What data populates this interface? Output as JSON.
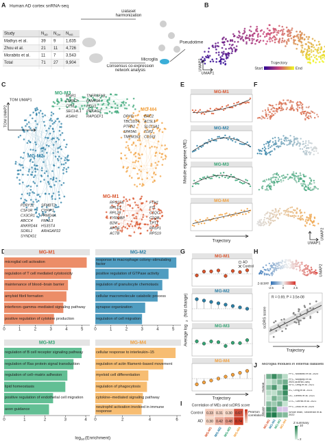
{
  "modules": [
    {
      "name": "MG-M1",
      "color": "#d9532b",
      "light": "#ec8d68"
    },
    {
      "name": "MG-M2",
      "color": "#2b7fa6",
      "light": "#4f9cc0"
    },
    {
      "name": "MG-M3",
      "color": "#35a474",
      "light": "#62bf94"
    },
    {
      "name": "MG-M4",
      "color": "#f2a03d",
      "light": "#f7bd72"
    }
  ],
  "panel_a": {
    "letter": "A",
    "title": "Human AD cortex snRNA-seq",
    "header": [
      {
        "text": "Study"
      },
      {
        "main": "N",
        "sub": "AD"
      },
      {
        "main": "N",
        "sub": "Ctrl"
      },
      {
        "main": "N",
        "sub": "MG"
      }
    ],
    "rows": [
      [
        "Mathys et al.",
        "39",
        "9",
        "1,635"
      ],
      [
        "Zhou et al.",
        "21",
        "11",
        "4,726"
      ],
      [
        "Morabito et al.",
        "11",
        "7",
        "3,543"
      ],
      [
        "Total",
        "71",
        "27",
        "9,904"
      ]
    ],
    "steps": [
      "Dataset harmonization",
      "Microglia",
      "Pseudotime",
      "Consensus co-expression network analysis"
    ]
  },
  "panel_b": {
    "letter": "B",
    "x_label": "UMAP1",
    "y_label": "UMAP2",
    "legend_title": "Trajectory",
    "legend_start": "Start",
    "legend_end": "End"
  },
  "panel_c": {
    "letter": "C",
    "x_label": "TOM UMAP1",
    "y_label": "TOM UMAP2",
    "genes": [
      [
        "FTH1",
        "FTL",
        "C1QC",
        "C1QB",
        "TPT1",
        "RPLP1",
        "RPS19",
        "RPS27A",
        "RPL13",
        "RPL28",
        "TYROBP",
        "B2M",
        "APOE",
        "ACTB"
      ],
      [
        "P2RY12",
        "CSF1R",
        "CX3CR1",
        "ABCC4",
        "ANKRD44",
        "SORL1",
        "SYNDIG1",
        "SFMBT2",
        "CYFIP1",
        "FRMD4A",
        "FMNL3",
        "HS3ST4",
        "ARHGAP22"
      ],
      [
        "MSR1",
        "LRRK2",
        "CPVL",
        "SEC14L1",
        "ASAH1",
        "TNFRSF1B",
        "FAM49A",
        "PELI1",
        "PRKAG2",
        "RAPGEF1"
      ],
      [
        "DPYD",
        "TBC1D14",
        "PTPN2",
        "SPATA6",
        "TMEM163",
        "ERC2",
        "ACSL1",
        "SLC11A1",
        "TLR2",
        "CD163"
      ]
    ]
  },
  "panel_d": {
    "letter": "D",
    "x_label": {
      "main": "log",
      "sub": "10",
      "rest": "(Enrichment)"
    },
    "charts": [
      {
        "type": "bar",
        "categories": [
          "microglial cell activation",
          "regulation of T cell mediated cytotoxicity",
          "maintenance of blood–brain barrier",
          "amyloid fibril formation",
          "interferon–gamma–mediated signaling pathway",
          "positive regulation of cytokine production"
        ],
        "values": [
          5.3,
          4.3,
          4.1,
          4.0,
          3.8,
          3.2
        ],
        "xlim": [
          0,
          5.5
        ],
        "xticks": [
          0,
          1,
          2,
          3,
          4,
          5
        ]
      },
      {
        "type": "bar",
        "categories": [
          "response to macrophage colony–stimulating factor",
          "positive regulation of GTPase activity",
          "regulation of granulocyte chemotaxis",
          "cellular macromolecule catabolic process",
          "synapse organization",
          "regulation of cell migration"
        ],
        "values": [
          5.2,
          4.7,
          4.3,
          4.0,
          3.2,
          3.0
        ],
        "xlim": [
          0,
          5.5
        ],
        "xticks": [
          0,
          1,
          2,
          3,
          4,
          5
        ]
      },
      {
        "type": "bar",
        "categories": [
          "regulation of B cell receptor signaling pathway",
          "regulation of Ras protein signal transduction",
          "regulation of cell–matrix adhesion",
          "lipid homeostasis",
          "positive regulation of endothelial cell migration",
          "axon guidance"
        ],
        "values": [
          3.8,
          3.4,
          3.1,
          3.0,
          2.4,
          2.2
        ],
        "xlim": [
          0,
          4.2
        ],
        "xticks": [
          0,
          1,
          2,
          3,
          4
        ]
      },
      {
        "type": "bar",
        "categories": [
          "cellular response to interleukin–15",
          "regulation of actin filament–based movement",
          "myeloid cell differentiation",
          "regulation of phagocytosis",
          "cytokine–mediated signaling pathway",
          "neutrophil activation involved in immune response"
        ],
        "values": [
          5.9,
          5.0,
          3.9,
          3.8,
          3.5,
          3.4
        ],
        "xlim": [
          0,
          6.3
        ],
        "xticks": [
          0,
          2,
          4,
          6
        ]
      }
    ]
  },
  "panel_e": {
    "letter": "E",
    "y_label": "Module eigengene (ME)",
    "x_label": "Trajectory"
  },
  "panel_f": {
    "letter": "F",
    "x_label": "UMAP1",
    "y_label": "UMAP2"
  },
  "panel_g": {
    "letter": "G",
    "legend": [
      "AD",
      "Control"
    ],
    "y_label": {
      "main": "Average log",
      "sub": "2",
      "rest": "(fold change)"
    },
    "x_label": "Trajectory"
  },
  "panel_h": {
    "letter": "H",
    "legend_title": "z-score",
    "legend_ticks": [
      -2.5,
      0,
      2.5
    ],
    "umap_label": "UMAP2",
    "stat": "R = 0.69, P = 3.5e-08",
    "y_label": "scDRS score",
    "x_label": "Trajectory"
  },
  "panel_i": {
    "letter": "I",
    "title": "Correlation of MEs and scDRS score",
    "rows": [
      "Control",
      "AD"
    ],
    "values": [
      [
        0.33,
        0.31,
        0.3,
        0.67
      ],
      [
        0.3,
        0.42,
        0.48,
        0.74
      ]
    ],
    "value_labels": [
      [
        "0.33",
        "0.31",
        "0.30",
        "0.67"
      ],
      [
        "0.30",
        "0.42",
        "0.48",
        "0.74"
      ]
    ],
    "legend_title": "Pearson correlation"
  },
  "panel_j": {
    "letter": "J",
    "title": "Microglia modules in external datasets",
    "rows": [
      "PFC, Morabito et al. 2020",
      "PFC, Morabito et al. 2021,snATAC-seq",
      "SFG, Leng et al. 2021",
      "EC, Leng et al. 2021",
      "OC, Gerrits et al. 2021",
      "OTC, Gerrits et al. 2021",
      "PFC, Zhou et al. 2020",
      "Whole brain, Stroberian et al. 2022"
    ],
    "groups": [
      "Human",
      "Mouse"
    ],
    "legend_title": "Z summary",
    "legend_ticks": [
      2,
      10
    ]
  }
}
